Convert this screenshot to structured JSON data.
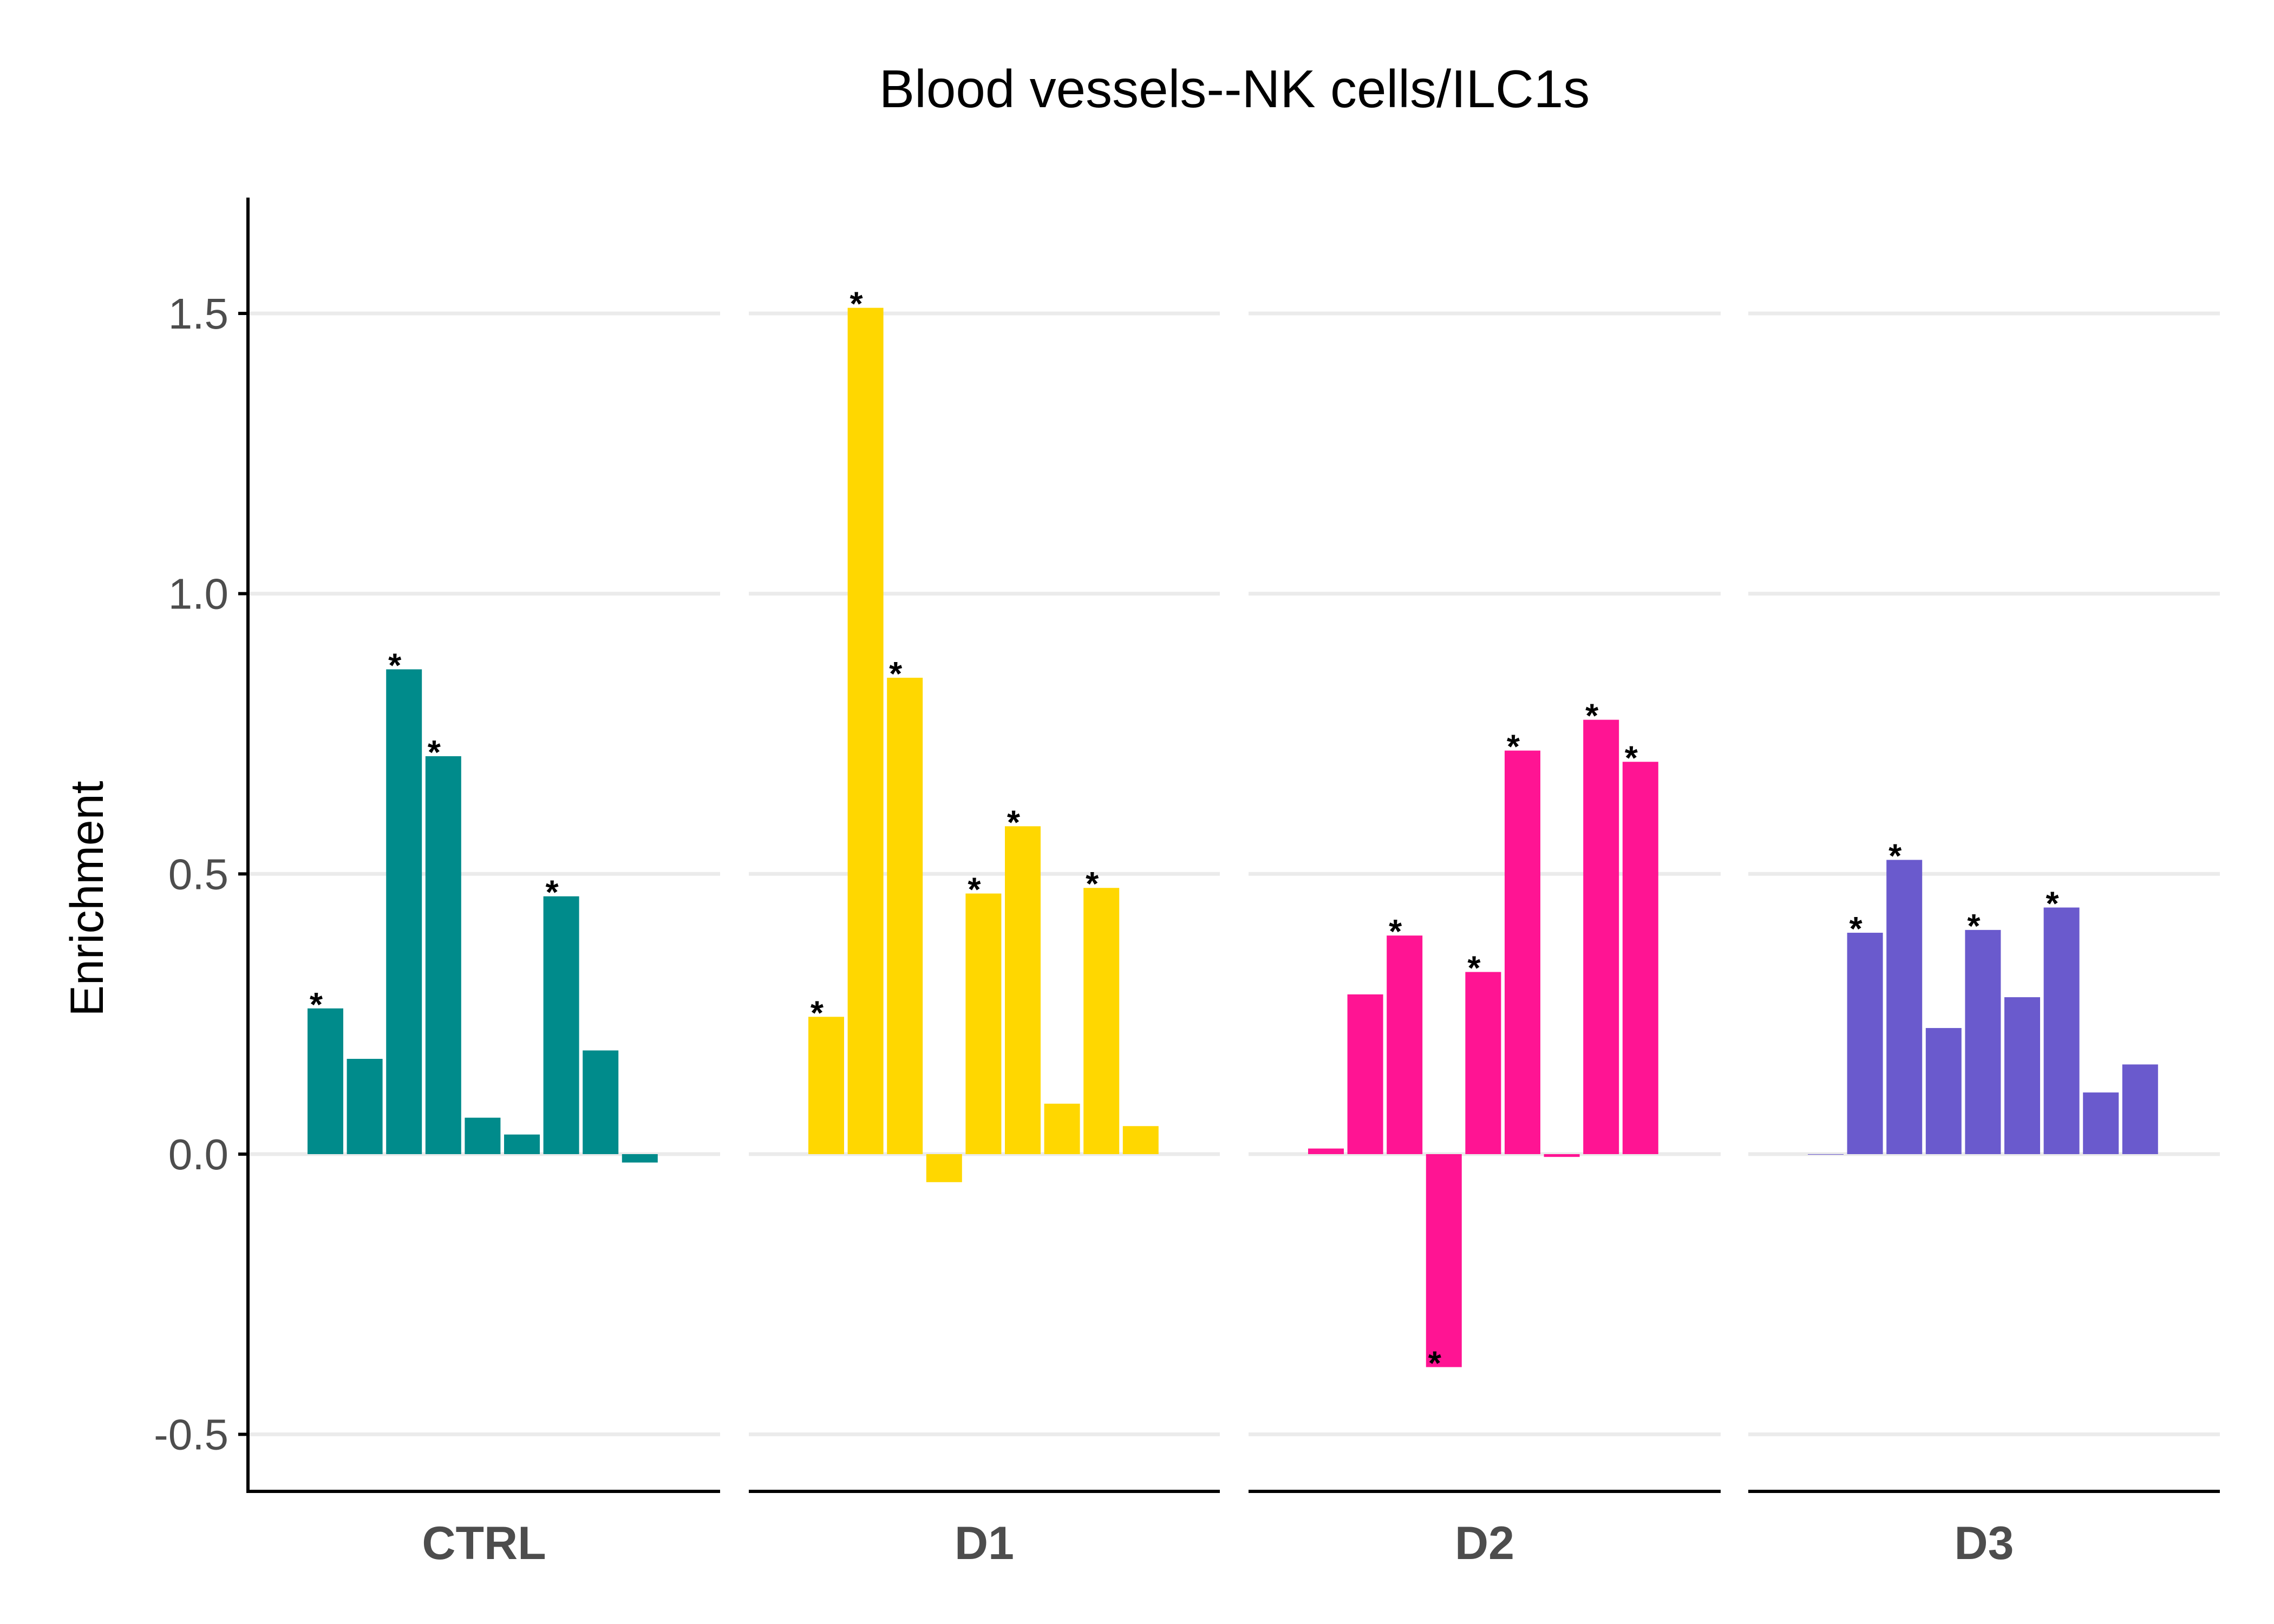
{
  "chart_data": {
    "type": "bar",
    "title": "Blood vessels--NK cells/ILC1s",
    "ylabel": "Enrichment",
    "xlabel": "",
    "ylim": [
      -0.6,
      1.7
    ],
    "yticks": [
      1.5,
      1.0,
      0.5,
      0.0,
      -0.5
    ],
    "ytick_labels": [
      "1.5",
      "1.0",
      "0.5",
      "0.0",
      "-0.5"
    ],
    "grid": "horizontal major",
    "legend": "none",
    "significance_marker": "*",
    "facets": [
      {
        "name": "CTRL",
        "color": "#008B8B",
        "values": [
          0.26,
          0.17,
          0.865,
          0.71,
          0.065,
          0.035,
          0.46,
          0.185,
          -0.015
        ],
        "significant": [
          true,
          false,
          true,
          true,
          false,
          false,
          true,
          false,
          false
        ]
      },
      {
        "name": "D1",
        "color": "#FFD700",
        "values": [
          0.245,
          1.51,
          0.85,
          -0.05,
          0.465,
          0.585,
          0.09,
          0.475,
          0.05
        ],
        "significant": [
          true,
          true,
          true,
          false,
          true,
          true,
          false,
          true,
          false
        ]
      },
      {
        "name": "D2",
        "color": "#FF1493",
        "values": [
          0.01,
          0.285,
          0.39,
          -0.38,
          0.325,
          0.72,
          -0.005,
          0.775,
          0.7
        ],
        "significant": [
          false,
          false,
          true,
          true,
          true,
          true,
          false,
          true,
          true
        ]
      },
      {
        "name": "D3",
        "color": "#6A5ACD",
        "values": [
          0.0,
          0.395,
          0.525,
          0.225,
          0.4,
          0.28,
          0.44,
          0.11,
          0.16
        ],
        "significant": [
          false,
          true,
          true,
          false,
          true,
          false,
          true,
          false,
          false
        ]
      }
    ]
  }
}
